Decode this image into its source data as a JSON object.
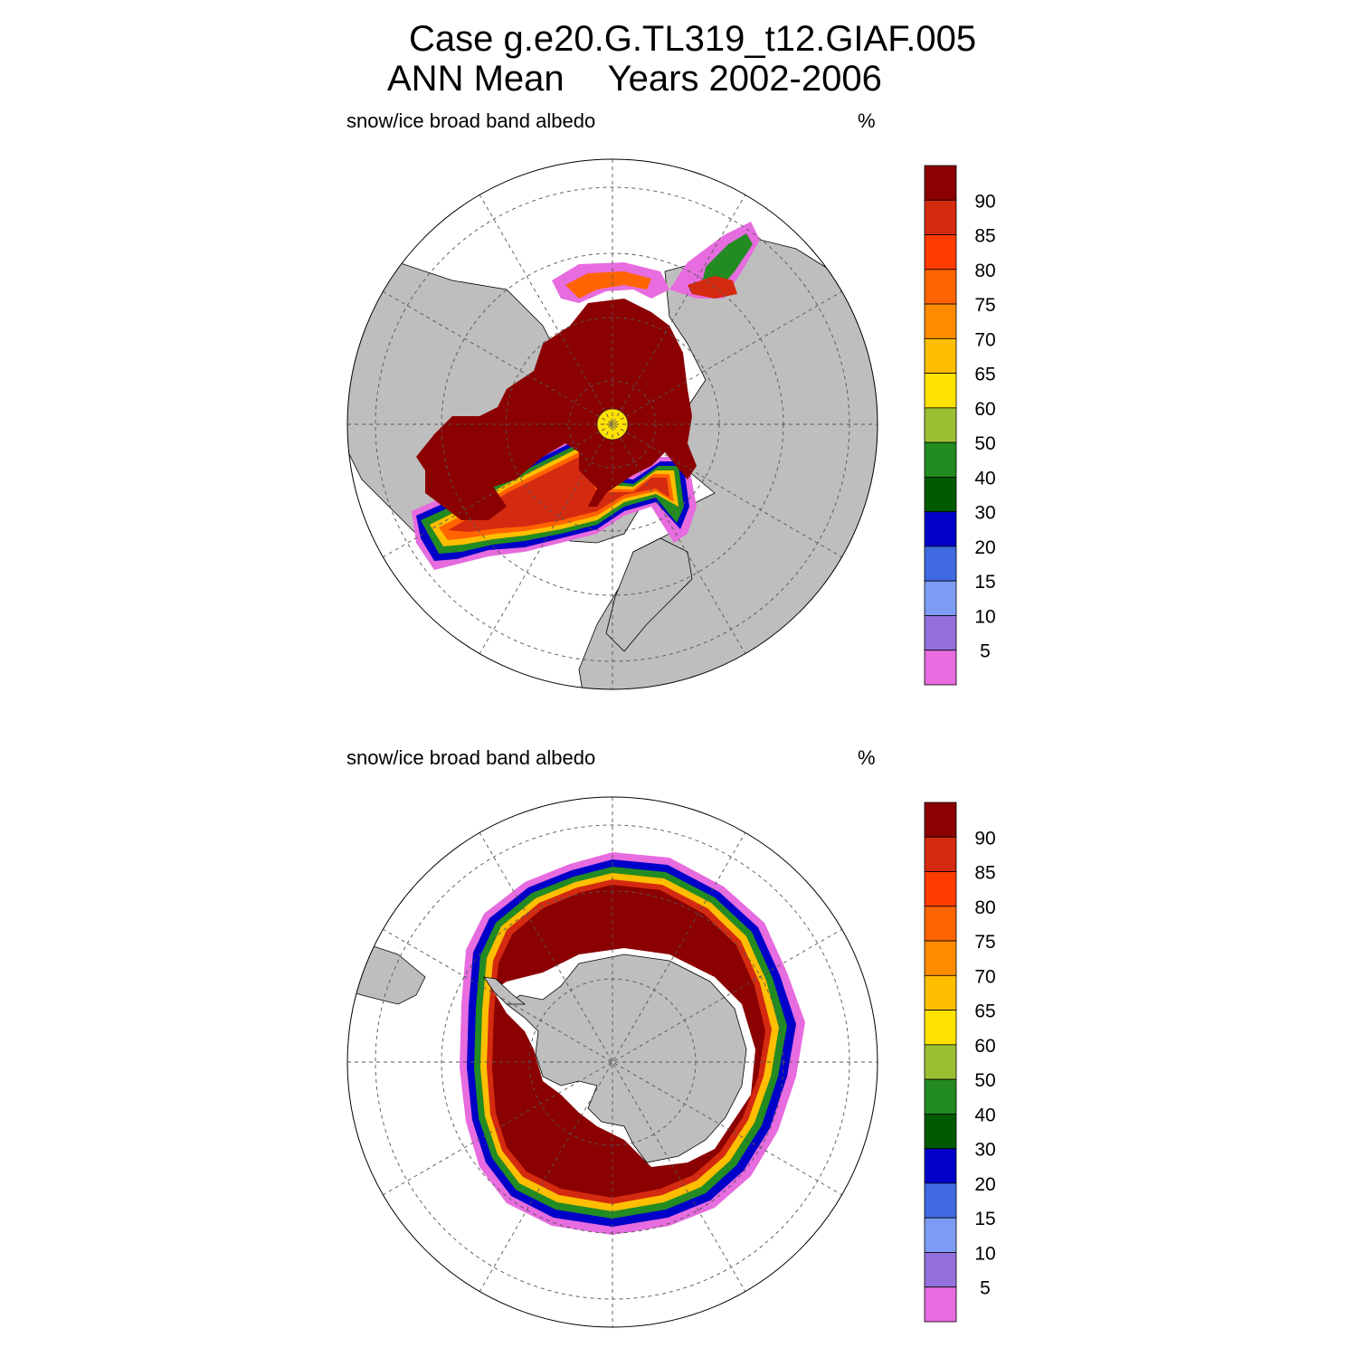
{
  "title": {
    "line1": "Case g.e20.G.TL319_t12.GIAF.005",
    "line2a": "ANN Mean",
    "line2b": "Years 2002-2006"
  },
  "panels": [
    {
      "name": "north",
      "variable": "snow/ice broad band albedo",
      "units": "%"
    },
    {
      "name": "south",
      "variable": "snow/ice broad band albedo",
      "units": "%"
    }
  ],
  "colorbar": {
    "labels": [
      "90",
      "85",
      "80",
      "75",
      "70",
      "65",
      "60",
      "50",
      "40",
      "30",
      "20",
      "15",
      "10",
      "5"
    ],
    "colors": [
      "#8b0000",
      "#d42a10",
      "#ff3c00",
      "#ff6400",
      "#ff8c00",
      "#ffbe00",
      "#ffe100",
      "#9bbf32",
      "#228b22",
      "#005a00",
      "#0000c8",
      "#4169e1",
      "#7b9cf2",
      "#9370db",
      "#e76cdf"
    ]
  },
  "map_colors": {
    "land": "#bebebe",
    "ocean": "#ffffff",
    "ice_max": "#8b0000",
    "pole_hole": "#ffe100"
  }
}
